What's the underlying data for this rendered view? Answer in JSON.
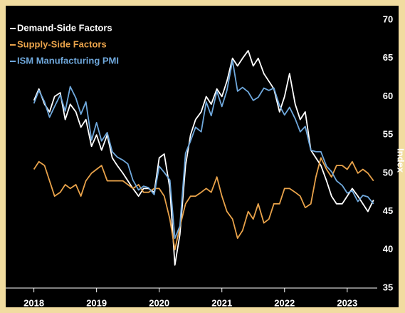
{
  "chart_data": {
    "type": "line",
    "ylabel": "Index",
    "x": [
      2018,
      2018.08,
      2018.17,
      2018.25,
      2018.33,
      2018.42,
      2018.5,
      2018.58,
      2018.67,
      2018.75,
      2018.83,
      2018.92,
      2019,
      2019.08,
      2019.17,
      2019.25,
      2019.33,
      2019.42,
      2019.5,
      2019.58,
      2019.67,
      2019.75,
      2019.83,
      2019.92,
      2020,
      2020.08,
      2020.17,
      2020.25,
      2020.33,
      2020.42,
      2020.5,
      2020.58,
      2020.67,
      2020.75,
      2020.83,
      2020.92,
      2021,
      2021.08,
      2021.17,
      2021.25,
      2021.33,
      2021.42,
      2021.5,
      2021.58,
      2021.67,
      2021.75,
      2021.83,
      2021.92,
      2022,
      2022.08,
      2022.17,
      2022.25,
      2022.33,
      2022.42,
      2022.5,
      2022.58,
      2022.67,
      2022.75,
      2022.83,
      2022.92,
      2023,
      2023.08,
      2023.17,
      2023.25,
      2023.33,
      2023.42
    ],
    "series": [
      {
        "name": "Demand-Side Factors",
        "color": "#ffffff",
        "values": [
          59.5,
          61,
          59,
          58,
          60,
          60.5,
          57,
          59,
          58,
          56,
          57,
          53.5,
          55,
          53,
          55,
          52,
          51,
          50,
          49,
          48,
          47,
          48,
          48,
          47.5,
          52,
          52.5,
          48,
          38,
          42,
          51,
          55,
          57,
          58,
          60,
          59,
          61,
          60,
          62,
          65,
          64,
          65,
          66,
          64,
          65,
          63,
          62,
          61,
          58,
          60,
          63,
          59,
          57,
          58,
          53,
          52,
          51,
          49,
          47,
          46,
          46,
          47,
          48,
          47,
          46,
          45,
          46.5
        ]
      },
      {
        "name": "Supply-Side Factors",
        "color": "#e8a24a",
        "values": [
          50.5,
          51.5,
          51,
          49,
          47,
          47.5,
          48.5,
          48,
          48.5,
          47,
          49,
          50,
          50.5,
          51,
          49,
          49,
          49,
          49,
          48.5,
          48,
          48.5,
          47.5,
          47.5,
          48,
          48,
          47,
          44,
          40,
          43,
          46,
          47,
          47,
          47.5,
          48,
          47.5,
          49.5,
          47,
          45,
          44,
          41.5,
          42.5,
          45,
          44,
          46,
          43.5,
          44,
          46,
          46,
          48,
          48,
          47.5,
          47,
          45.5,
          46,
          49.5,
          52,
          50.5,
          49.5,
          51,
          51,
          50.5,
          51.5,
          50,
          50.5,
          50,
          49
        ]
      },
      {
        "name": "ISM Manufacturing PMI",
        "color": "#6fa8dc",
        "values": [
          59.1,
          60.8,
          59.3,
          57.3,
          58.7,
          60.2,
          58.1,
          61.3,
          59.8,
          57.7,
          59.3,
          54.3,
          56.6,
          54.2,
          55.3,
          52.8,
          52.1,
          51.7,
          51.2,
          49.1,
          47.8,
          48.3,
          48.1,
          47.2,
          50.9,
          50.1,
          49.1,
          41.5,
          43.1,
          52.6,
          54.2,
          56,
          55.4,
          59.3,
          57.5,
          60.7,
          58.7,
          60.8,
          64.7,
          60.7,
          61.2,
          60.6,
          59.5,
          59.9,
          61.1,
          60.8,
          61.1,
          58.8,
          57.6,
          58.6,
          57.1,
          55.4,
          56.1,
          53,
          52.8,
          52.8,
          50.9,
          50.2,
          49,
          48.4,
          47.4,
          47.7,
          46.3,
          47.1,
          46.9,
          46
        ]
      }
    ],
    "xlim": [
      2017.55,
      2023.82
    ],
    "xticks": [
      2018,
      2019,
      2020,
      2021,
      2022,
      2023
    ],
    "ylim": [
      35,
      70
    ],
    "yticks": [
      35,
      40,
      45,
      50,
      55,
      60,
      65,
      70
    ],
    "legend": "upper left"
  }
}
